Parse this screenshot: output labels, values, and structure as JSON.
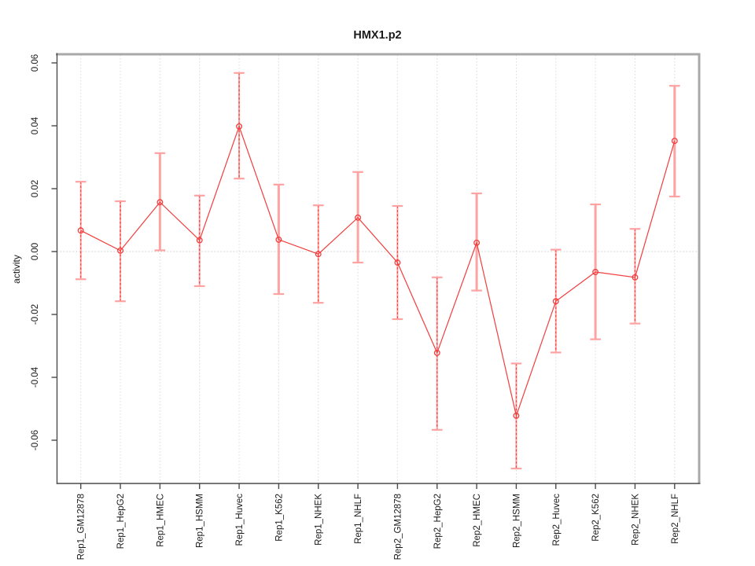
{
  "chart_data": {
    "type": "line",
    "title": "HMX1.p2",
    "ylabel": "activity",
    "xlabel": "",
    "categories": [
      "Rep1_GM12878",
      "Rep1_HepG2",
      "Rep1_HMEC",
      "Rep1_HSMM",
      "Rep1_Huvec",
      "Rep1_K562",
      "Rep1_NHEK",
      "Rep1_NHLF",
      "Rep2_GM12878",
      "Rep2_HepG2",
      "Rep2_HMEC",
      "Rep2_HSMM",
      "Rep2_Huvec",
      "Rep2_K562",
      "Rep2_NHEK",
      "Rep2_NHLF"
    ],
    "series": [
      {
        "name": "activity",
        "values": [
          0.0067,
          0.0003,
          0.0157,
          0.0036,
          0.0398,
          0.0038,
          -0.0008,
          0.0108,
          -0.0035,
          -0.0322,
          0.0028,
          -0.0522,
          -0.0158,
          -0.0065,
          -0.0082,
          0.0352
        ],
        "upper": [
          0.0222,
          0.016,
          0.0313,
          0.0178,
          0.0568,
          0.0213,
          0.0147,
          0.0253,
          0.0145,
          -0.0082,
          0.0185,
          -0.0356,
          0.0006,
          0.015,
          0.0072,
          0.0527
        ],
        "lower": [
          -0.0088,
          -0.0158,
          0.0004,
          -0.011,
          0.0232,
          -0.0135,
          -0.0163,
          -0.0035,
          -0.0215,
          -0.0567,
          -0.0124,
          -0.069,
          -0.0321,
          -0.0279,
          -0.0229,
          0.0175
        ]
      }
    ],
    "error_bar_styles": [
      "dashed",
      "dashed",
      "solid",
      "dashed",
      "dashed",
      "solid",
      "dashed",
      "solid",
      "dashed",
      "dashed",
      "solid",
      "dashed",
      "dashed",
      "solid",
      "dashed",
      "solid"
    ],
    "yticks": {
      "values": [
        -0.06,
        -0.04,
        -0.02,
        0.0,
        0.02,
        0.04,
        0.06
      ],
      "labels": [
        "-0.06",
        "-0.04",
        "-0.02",
        "0.00",
        "0.02",
        "0.04",
        "0.06"
      ]
    },
    "ylim": [
      -0.07375,
      0.0625
    ],
    "grid": {
      "vertical_gridlines": true,
      "zero_line": true,
      "legend": "none"
    },
    "colors": {
      "point_line": "#f23d3d",
      "error_bar": "#ffa2a2",
      "gridline": "#dadada",
      "zero_line": "#cbcbcb",
      "frame_light": "#a8a8a8",
      "frame_dark": "#4b4b4b",
      "text": "#1a1a1a"
    }
  }
}
